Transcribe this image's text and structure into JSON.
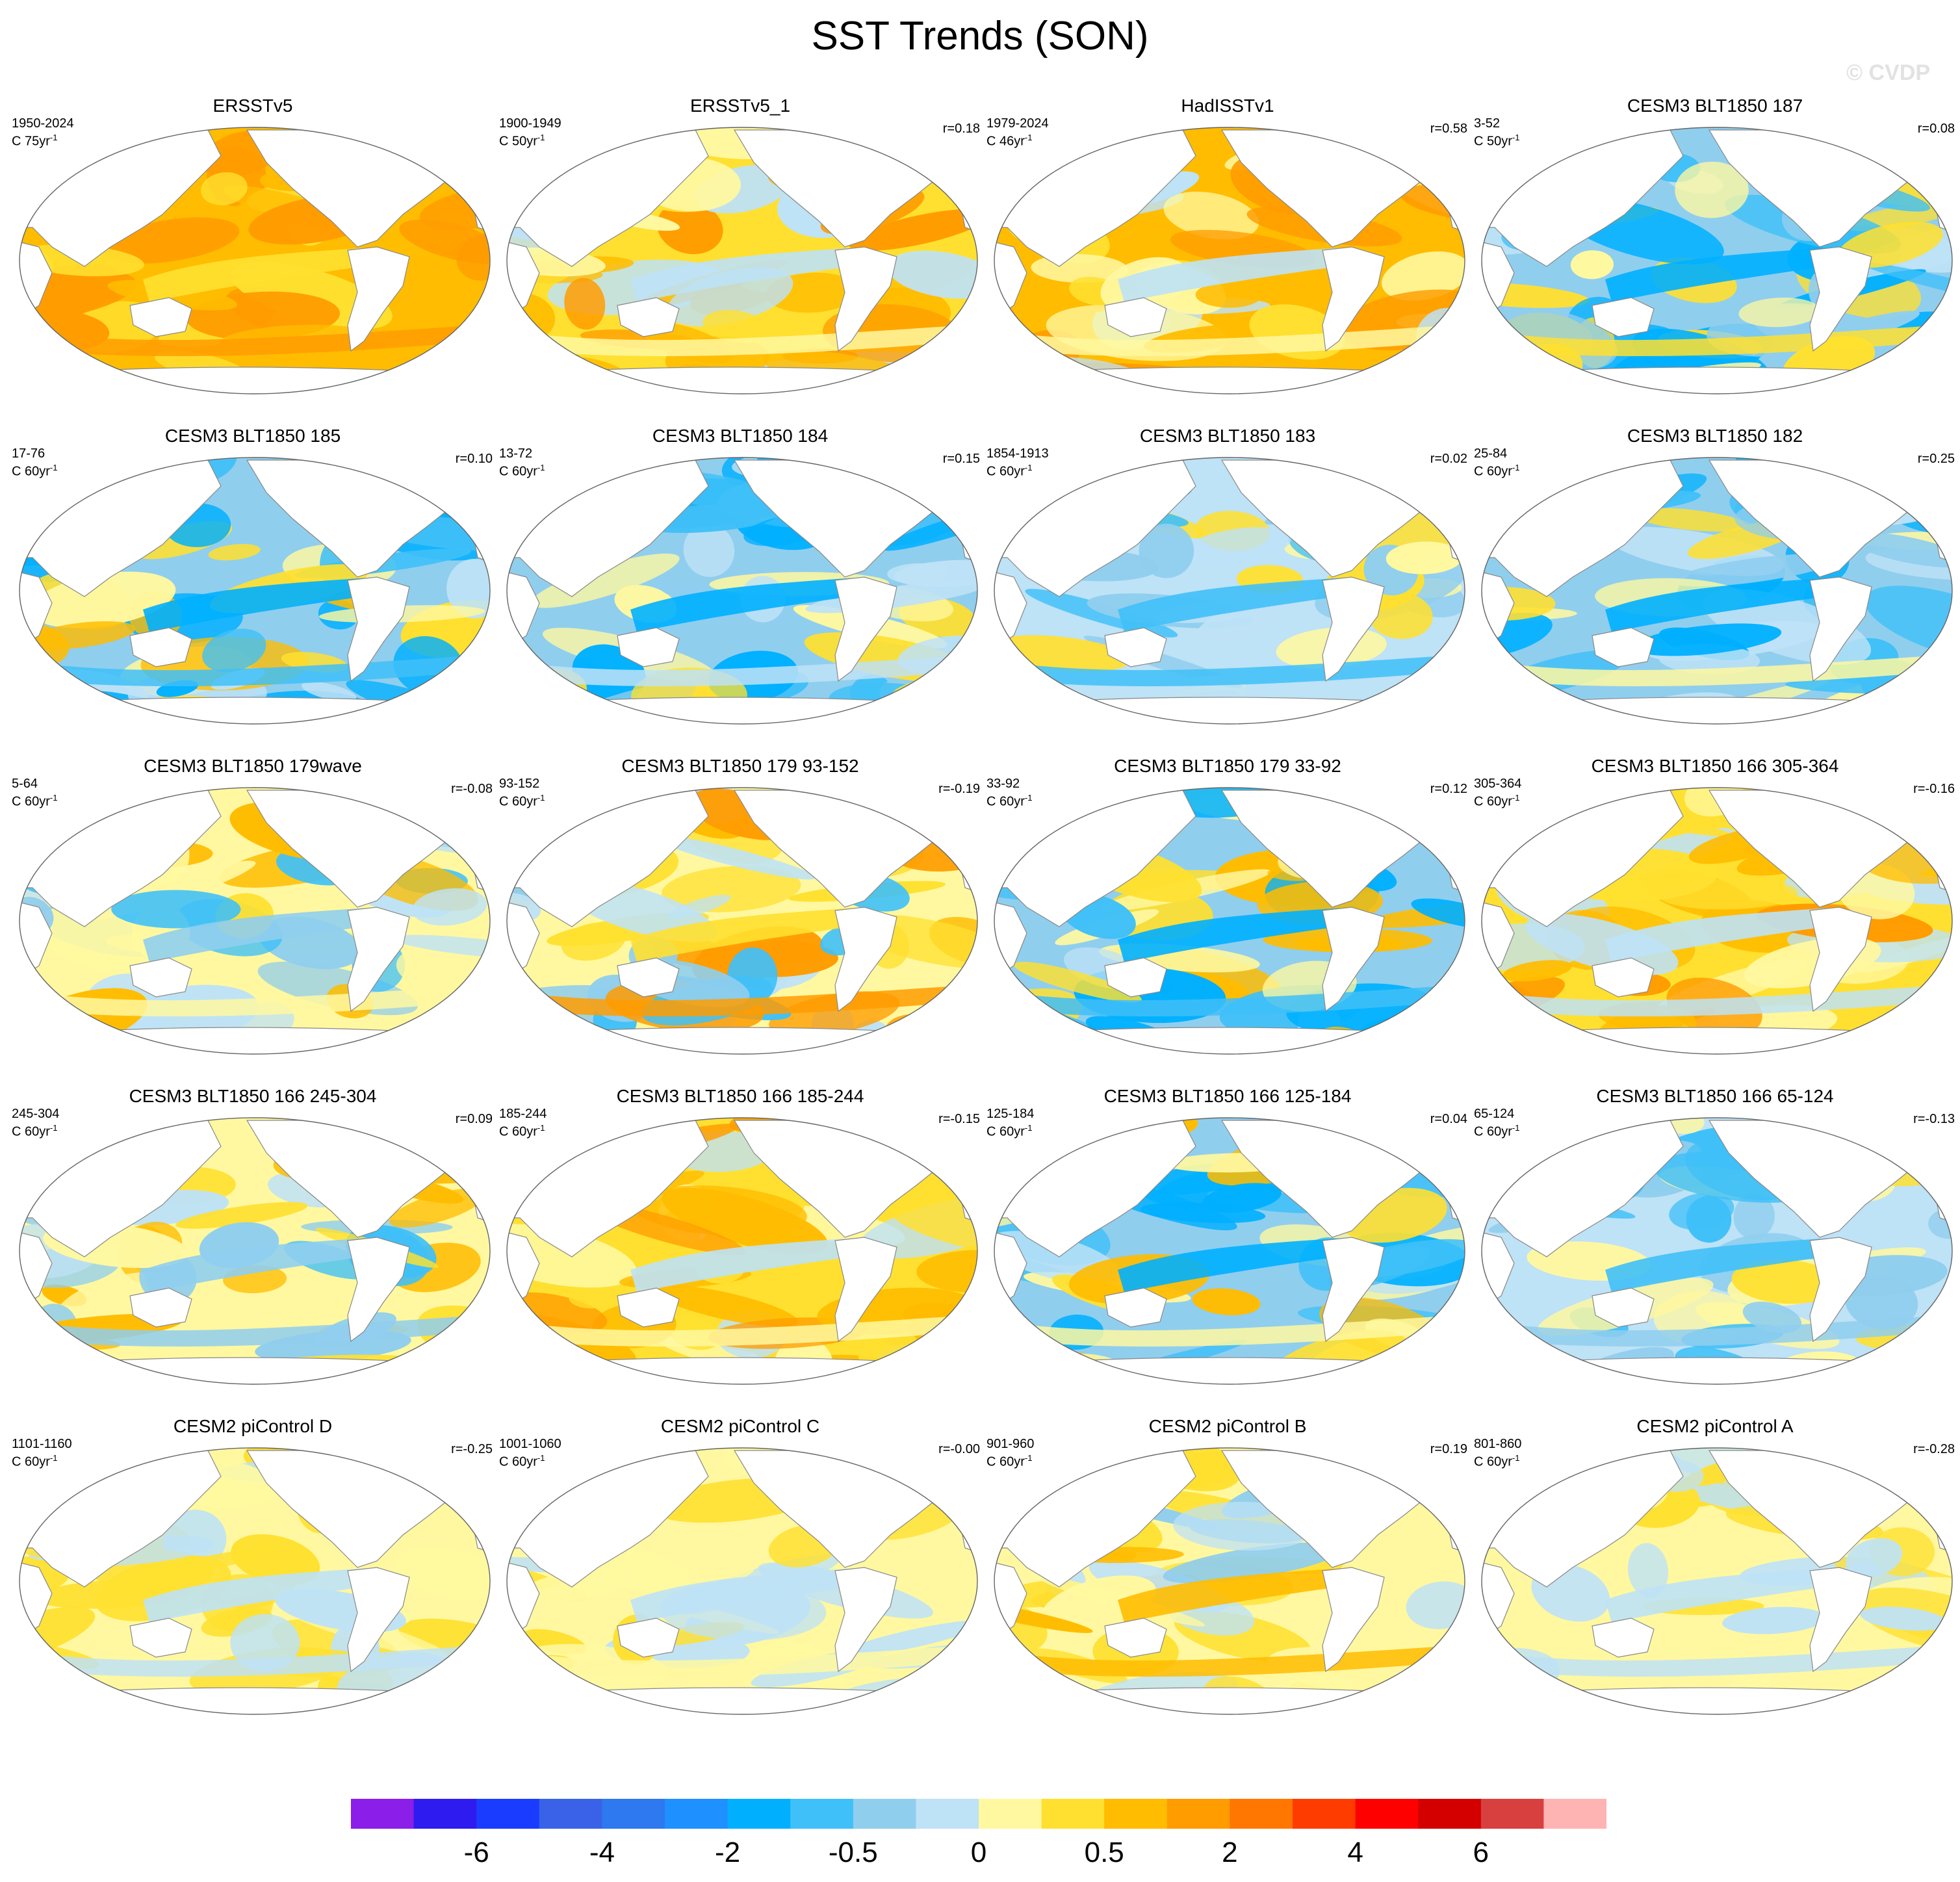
{
  "title": "SST Trends (SON)",
  "watermark": "© CVDP",
  "colors": {
    "levels": [
      "#8b1ee8",
      "#2e1bf0",
      "#1a3cff",
      "#3a62e8",
      "#2e78f0",
      "#1e90ff",
      "#00b0ff",
      "#40c0f8",
      "#90ceee",
      "#bee2f6",
      "#fff8a0",
      "#ffe030",
      "#ffbc00",
      "#ff9c00",
      "#ff7600",
      "#ff3c00",
      "#ff0000",
      "#d40000",
      "#d84040",
      "#ffb4b4"
    ],
    "land": "#ffffff",
    "coast": "#888888"
  },
  "colorbar_labels": [
    "-6",
    "-4",
    "-2",
    "-0.5",
    "0",
    "0.5",
    "2",
    "4",
    "6"
  ],
  "panels": [
    {
      "title": "ERSSTv5",
      "period": "1950-2024",
      "units": "C 75yr",
      "corr": "",
      "pattern": "warm"
    },
    {
      "title": "ERSSTv5_1",
      "period": "1900-1949",
      "units": "C 50yr",
      "corr": "r=0.18",
      "pattern": "warm-mixed"
    },
    {
      "title": "HadISSTv1",
      "period": "1979-2024",
      "units": "C 46yr",
      "corr": "r=0.58",
      "pattern": "warm-lanina"
    },
    {
      "title": "CESM3 BLT1850 187",
      "period": "3-52",
      "units": "C 50yr",
      "corr": "r=0.08",
      "pattern": "cool"
    },
    {
      "title": "CESM3 BLT1850 185",
      "period": "17-76",
      "units": "C 60yr",
      "corr": "r=0.10",
      "pattern": "cool-band"
    },
    {
      "title": "CESM3 BLT1850 184",
      "period": "13-72",
      "units": "C 60yr",
      "corr": "r=0.15",
      "pattern": "cool"
    },
    {
      "title": "CESM3 BLT1850 183",
      "period": "1854-1913",
      "units": "C 60yr",
      "corr": "r=0.02",
      "pattern": "cool-mixed"
    },
    {
      "title": "CESM3 BLT1850 182",
      "period": "25-84",
      "units": "C 60yr",
      "corr": "r=0.25",
      "pattern": "cool"
    },
    {
      "title": "CESM3 BLT1850 179wave",
      "period": "5-64",
      "units": "C 60yr",
      "corr": "r=-0.08",
      "pattern": "mixed"
    },
    {
      "title": "CESM3 BLT1850 179 93-152",
      "period": "93-152",
      "units": "C 60yr",
      "corr": "r=-0.19",
      "pattern": "mixed-band"
    },
    {
      "title": "CESM3 BLT1850 179 33-92",
      "period": "33-92",
      "units": "C 60yr",
      "corr": "r=0.12",
      "pattern": "cool-band"
    },
    {
      "title": "CESM3 BLT1850 166 305-364",
      "period": "305-364",
      "units": "C 60yr",
      "corr": "r=-0.16",
      "pattern": "warm-mixed"
    },
    {
      "title": "CESM3 BLT1850 166 245-304",
      "period": "245-304",
      "units": "C 60yr",
      "corr": "r=0.09",
      "pattern": "mixed"
    },
    {
      "title": "CESM3 BLT1850 166 185-244",
      "period": "185-244",
      "units": "C 60yr",
      "corr": "r=-0.15",
      "pattern": "warm-mixed"
    },
    {
      "title": "CESM3 BLT1850 166 125-184",
      "period": "125-184",
      "units": "C 60yr",
      "corr": "r=0.04",
      "pattern": "cool-band"
    },
    {
      "title": "CESM3 BLT1850 166 65-124",
      "period": "65-124",
      "units": "C 60yr",
      "corr": "r=-0.13",
      "pattern": "cool-mixed"
    },
    {
      "title": "CESM2 piControl D",
      "period": "1101-1160",
      "units": "C 60yr",
      "corr": "r=-0.25",
      "pattern": "weak"
    },
    {
      "title": "CESM2 piControl C",
      "period": "1001-1060",
      "units": "C 60yr",
      "corr": "r=-0.00",
      "pattern": "weak"
    },
    {
      "title": "CESM2 piControl B",
      "period": "901-960",
      "units": "C 60yr",
      "corr": "r=0.19",
      "pattern": "weak-warm"
    },
    {
      "title": "CESM2 piControl A",
      "period": "801-860",
      "units": "C 60yr",
      "corr": "r=-0.28",
      "pattern": "weak"
    }
  ]
}
